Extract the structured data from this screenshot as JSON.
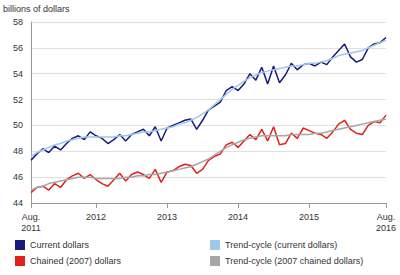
{
  "chart_data": {
    "type": "line",
    "y_label": "billions of dollars",
    "categories": [
      "Aug.\n2011",
      null,
      null,
      null,
      null,
      null,
      null,
      null,
      null,
      null,
      null,
      "2012",
      null,
      null,
      null,
      null,
      null,
      null,
      null,
      null,
      null,
      null,
      null,
      "2013",
      null,
      null,
      null,
      null,
      null,
      null,
      null,
      null,
      null,
      null,
      null,
      "2014",
      null,
      null,
      null,
      null,
      null,
      null,
      null,
      null,
      null,
      null,
      null,
      "2015",
      null,
      null,
      null,
      null,
      null,
      null,
      null,
      null,
      null,
      null,
      null,
      null,
      "Aug.\n2016"
    ],
    "series": [
      {
        "name": "Current dollars",
        "color": "#1a1a7e",
        "values": [
          47.3,
          47.8,
          48.2,
          47.9,
          48.4,
          48.1,
          48.6,
          49.0,
          49.2,
          48.9,
          49.5,
          49.2,
          49.0,
          48.6,
          48.9,
          49.3,
          48.8,
          49.3,
          49.5,
          49.7,
          49.2,
          49.9,
          48.8,
          49.8,
          50.0,
          50.2,
          50.4,
          50.5,
          49.7,
          50.4,
          51.2,
          51.5,
          51.8,
          52.7,
          53.0,
          52.7,
          53.2,
          54.0,
          53.5,
          54.5,
          53.2,
          54.6,
          53.3,
          53.9,
          54.8,
          54.3,
          54.7,
          54.8,
          54.6,
          54.9,
          54.7,
          55.3,
          55.8,
          56.3,
          55.3,
          54.9,
          55.1,
          56.0,
          56.3,
          56.4,
          56.8
        ]
      },
      {
        "name": "Trend-cycle (current dollars)",
        "color": "#9ec9e8",
        "values": [
          47.6,
          47.9,
          48.1,
          48.3,
          48.5,
          48.6,
          48.8,
          48.9,
          49.0,
          49.1,
          49.1,
          49.1,
          49.1,
          49.1,
          49.1,
          49.2,
          49.2,
          49.3,
          49.4,
          49.5,
          49.5,
          49.6,
          49.7,
          49.8,
          49.9,
          50.1,
          50.2,
          50.4,
          50.6,
          50.9,
          51.2,
          51.6,
          52.0,
          52.4,
          52.8,
          53.1,
          53.4,
          53.7,
          53.9,
          54.1,
          54.2,
          54.3,
          54.4,
          54.5,
          54.6,
          54.6,
          54.7,
          54.8,
          54.8,
          54.9,
          55.0,
          55.2,
          55.4,
          55.5,
          55.6,
          55.7,
          55.8,
          56.0,
          56.2,
          56.4,
          56.6
        ]
      },
      {
        "name": "Chained (2007) dollars",
        "color": "#e3211c",
        "values": [
          44.8,
          45.2,
          45.3,
          45.0,
          45.5,
          45.2,
          45.8,
          46.1,
          46.3,
          45.9,
          46.2,
          45.8,
          45.5,
          45.3,
          45.8,
          46.3,
          45.7,
          46.2,
          46.4,
          46.2,
          45.9,
          46.6,
          45.6,
          46.4,
          46.5,
          46.8,
          47.0,
          46.9,
          46.3,
          46.6,
          47.3,
          47.6,
          47.8,
          48.5,
          48.7,
          48.3,
          48.8,
          49.3,
          48.9,
          49.7,
          48.8,
          49.9,
          48.5,
          48.6,
          49.4,
          49.0,
          49.8,
          49.6,
          49.4,
          49.3,
          49.0,
          49.5,
          50.1,
          50.4,
          49.7,
          49.4,
          49.3,
          50.0,
          50.3,
          50.2,
          50.8
        ]
      },
      {
        "name": "Trend-cycle (2007 chained dollars)",
        "color": "#a6a6a6",
        "values": [
          45.0,
          45.2,
          45.3,
          45.5,
          45.6,
          45.7,
          45.8,
          45.9,
          46.0,
          46.0,
          46.0,
          45.9,
          45.9,
          45.9,
          45.9,
          45.9,
          46.0,
          46.0,
          46.1,
          46.1,
          46.2,
          46.2,
          46.3,
          46.4,
          46.5,
          46.6,
          46.7,
          46.8,
          47.0,
          47.2,
          47.4,
          47.7,
          48.0,
          48.3,
          48.5,
          48.7,
          48.9,
          49.0,
          49.1,
          49.2,
          49.2,
          49.2,
          49.2,
          49.2,
          49.3,
          49.3,
          49.3,
          49.3,
          49.4,
          49.4,
          49.5,
          49.6,
          49.7,
          49.8,
          49.9,
          50.0,
          50.1,
          50.2,
          50.3,
          50.4,
          50.5
        ]
      }
    ],
    "ylim": [
      44,
      58
    ],
    "yticks": [
      44,
      46,
      48,
      50,
      52,
      54,
      56,
      58
    ],
    "grid": true,
    "legend": "bottom"
  }
}
